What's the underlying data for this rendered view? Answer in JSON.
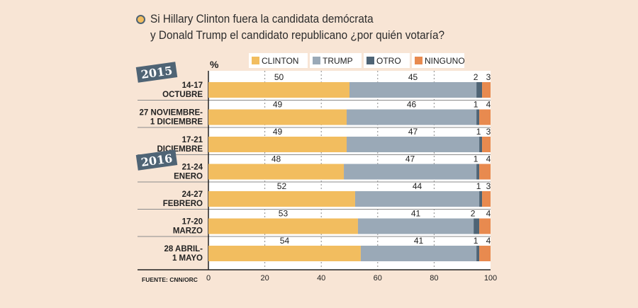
{
  "title": {
    "line1": "Si Hillary Clinton fuera la candidata demócrata",
    "line2": "y Donald Trump el candidato republicano ¿por quién votaría?"
  },
  "chart_data": {
    "type": "bar",
    "orientation": "horizontal-stacked",
    "unit_label": "%",
    "categories": [
      [
        "14-17",
        "OCTUBRE"
      ],
      [
        "27 NOVIEMBRE-",
        "1 DICIEMBRE"
      ],
      [
        "17-21",
        "DICIEMBRE"
      ],
      [
        "21-24",
        "ENERO"
      ],
      [
        "24-27",
        "FEBRERO"
      ],
      [
        "17-20",
        "MARZO"
      ],
      [
        "28 ABRIL-",
        "1 MAYO"
      ]
    ],
    "year_badges": [
      {
        "label": "2015",
        "row": 0
      },
      {
        "label": "2016",
        "row": 3
      }
    ],
    "series": [
      {
        "name": "CLINTON",
        "color": "#f2bd5f",
        "values": [
          50,
          49,
          49,
          48,
          52,
          53,
          54
        ]
      },
      {
        "name": "TRUMP",
        "color": "#9aa9b7",
        "values": [
          45,
          46,
          47,
          47,
          44,
          41,
          41
        ]
      },
      {
        "name": "OTRO",
        "color": "#4f6475",
        "values": [
          2,
          1,
          1,
          1,
          1,
          2,
          1
        ]
      },
      {
        "name": "NINGUNO",
        "color": "#e88a4f",
        "values": [
          3,
          4,
          3,
          4,
          3,
          4,
          4
        ]
      }
    ],
    "xlim": [
      0,
      100
    ],
    "xticks": [
      0,
      20,
      40,
      60,
      80,
      100
    ],
    "gridlines": "dotted",
    "legend": "top",
    "source": "FUENTE: CNN/ORC"
  }
}
